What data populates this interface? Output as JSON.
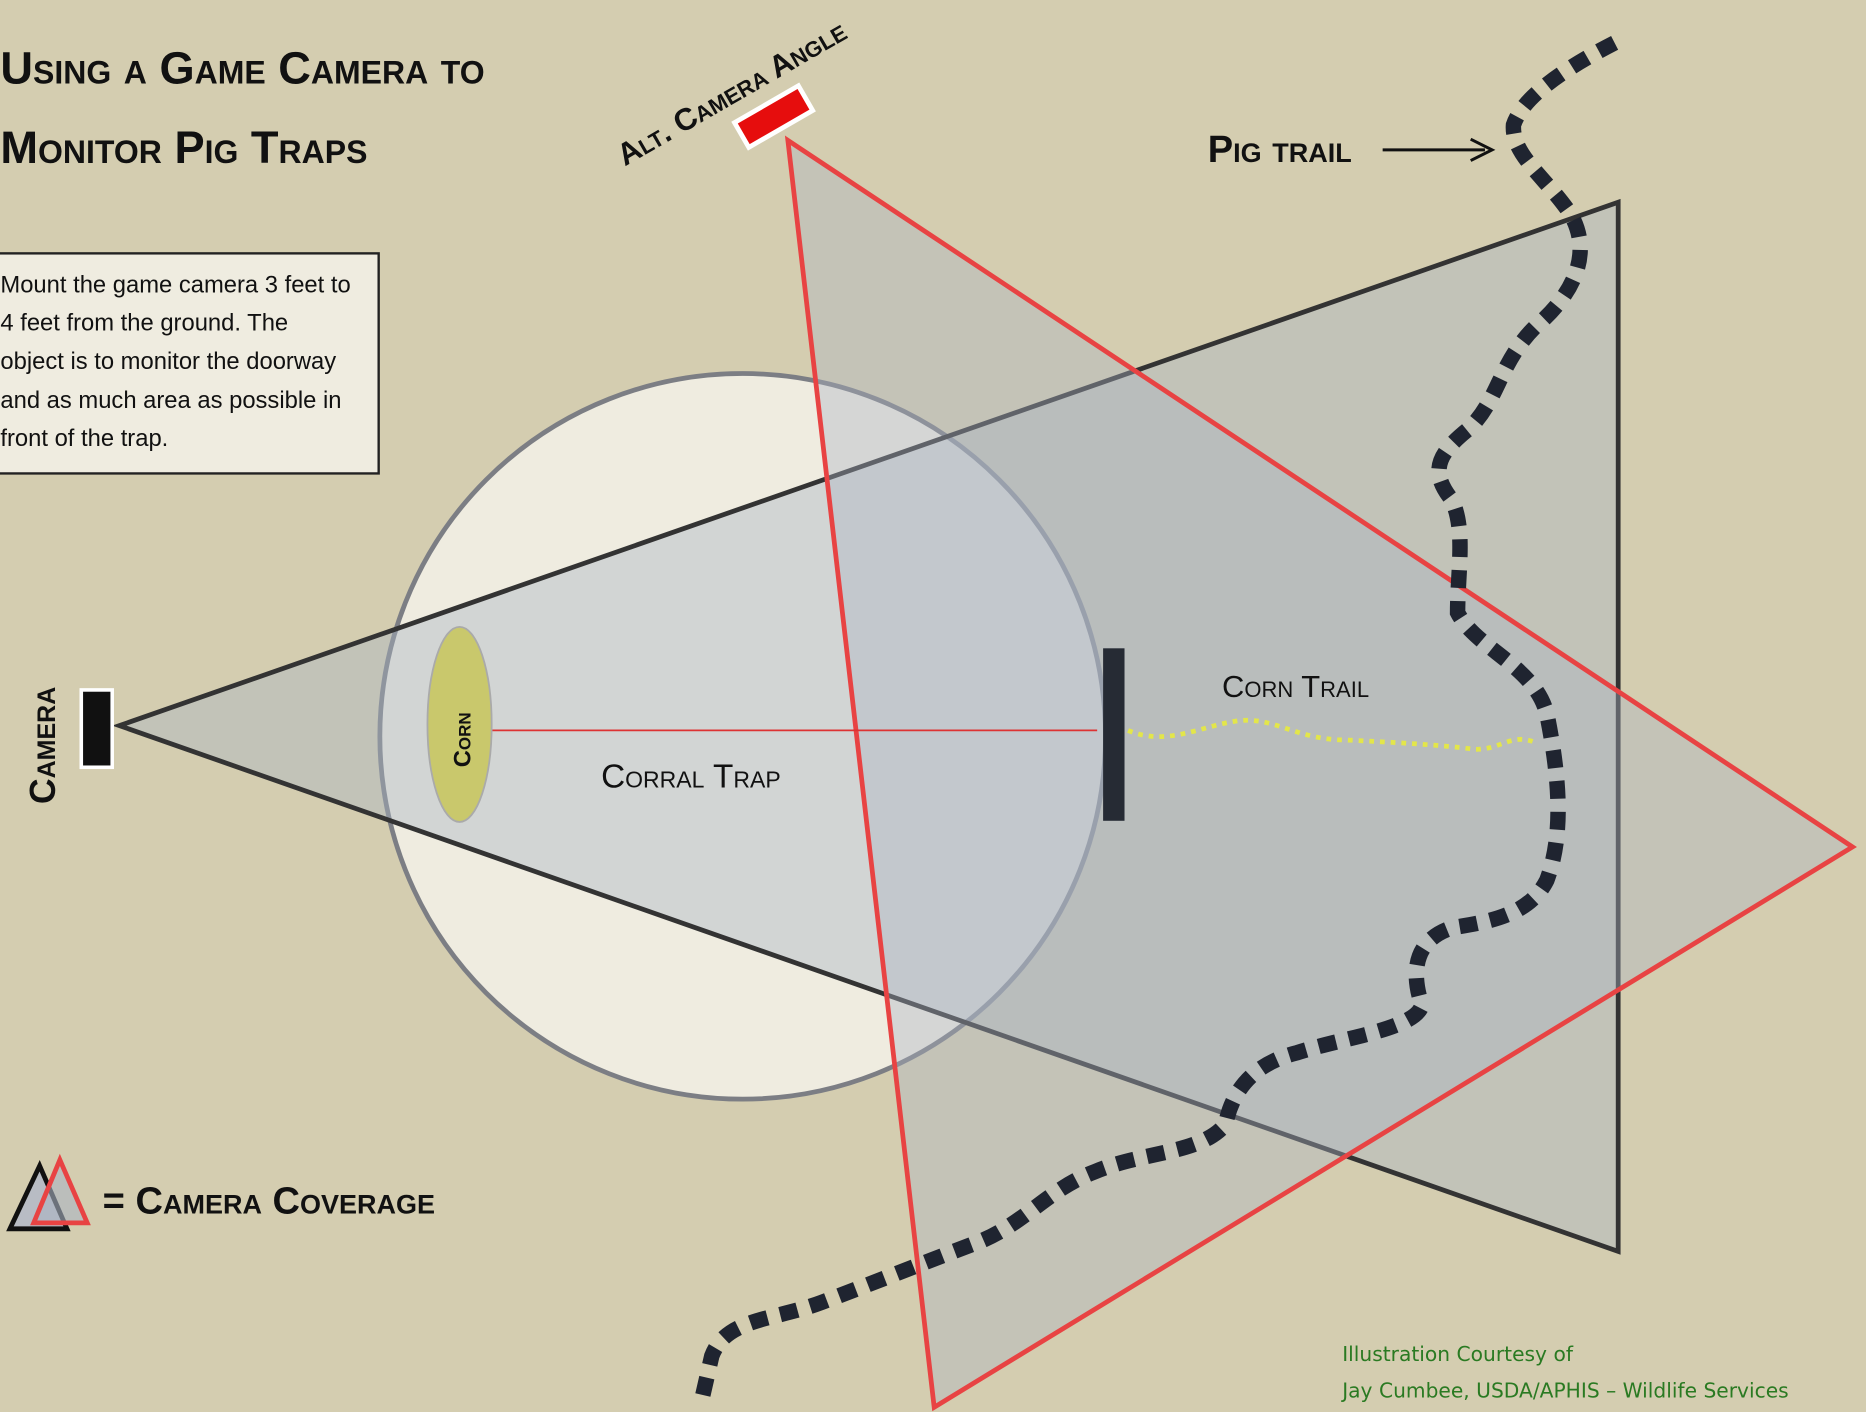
{
  "header": {
    "title_lines": [
      "Using a Game Camera to",
      "Monitor Pig Traps"
    ]
  },
  "instructions": {
    "lines": [
      "Mount the game camera 3 feet to",
      "4 feet from the ground. The",
      "object is to monitor the doorway",
      "and as much area as possible in",
      "front of the trap."
    ]
  },
  "labels": {
    "alt_camera": "Alt. Camera Angle",
    "pig_trail": "Pig trail",
    "camera": "Camera",
    "corn": "Corn",
    "corral_trap": "Corral Trap",
    "corn_trail": "Corn Trail"
  },
  "legend": {
    "text": "= Camera Coverage"
  },
  "credit": {
    "lines": [
      "Illustration Courtesy of",
      "Jay Cumbee, USDA/APHIS – Wildlife Services"
    ]
  }
}
